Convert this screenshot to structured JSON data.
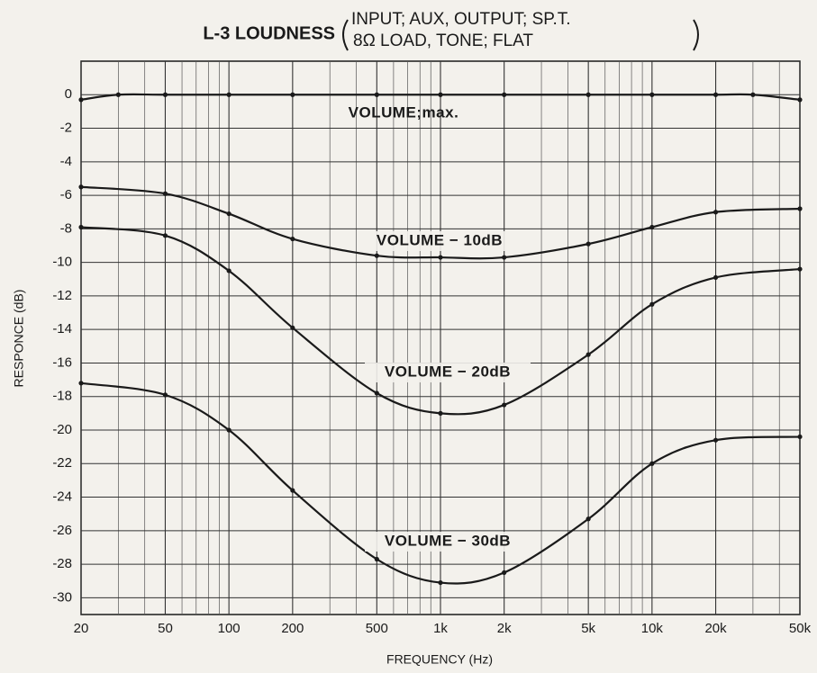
{
  "chart_data": {
    "type": "line",
    "title": "L-3 LOUDNESS",
    "title_conditions": [
      "INPUT; AUX, OUTPUT; SP.T.",
      "8Ω LOAD, TONE; FLAT"
    ],
    "x_label": "FREQUENCY (Hz)",
    "y_label": "RESPONCE (dB)",
    "log_x": true,
    "grid": true,
    "color": "#1a1a1a",
    "xlim": [
      20,
      50000
    ],
    "ylim": [
      -31,
      2
    ],
    "xticks": [
      20,
      50,
      100,
      200,
      500,
      {
        "value": 1000,
        "label": "1k"
      },
      {
        "value": 2000,
        "label": "2k"
      },
      {
        "value": 5000,
        "label": "5k"
      },
      {
        "value": 10000,
        "label": "10k"
      },
      {
        "value": 20000,
        "label": "20k"
      },
      {
        "value": 50000,
        "label": "50k"
      }
    ],
    "xminorticks": [
      30,
      40,
      60,
      70,
      80,
      90,
      300,
      400,
      600,
      700,
      800,
      900,
      3000,
      4000,
      6000,
      7000,
      8000,
      9000,
      30000,
      40000
    ],
    "yticks": [
      0,
      -2,
      -4,
      -6,
      -8,
      -10,
      -12,
      -14,
      -16,
      -18,
      -20,
      -22,
      -24,
      -26,
      -28,
      -30
    ],
    "series": [
      {
        "name": "VOLUME;max.",
        "x": [
          20,
          30,
          50,
          100,
          200,
          500,
          1000,
          2000,
          5000,
          10000,
          20000,
          30000,
          50000
        ],
        "values": [
          -0.3,
          0,
          0,
          0,
          0,
          0,
          0,
          0,
          0,
          0,
          0,
          0,
          -0.3
        ]
      },
      {
        "name": "VOLUME − 10dB",
        "x": [
          20,
          50,
          100,
          200,
          500,
          1000,
          2000,
          5000,
          10000,
          20000,
          50000
        ],
        "values": [
          -5.5,
          -5.9,
          -7.1,
          -8.6,
          -9.6,
          -9.7,
          -9.7,
          -8.9,
          -7.9,
          -7.0,
          -6.8
        ]
      },
      {
        "name": "VOLUME − 20dB",
        "x": [
          20,
          50,
          100,
          200,
          500,
          1000,
          2000,
          5000,
          10000,
          20000,
          50000
        ],
        "values": [
          -7.9,
          -8.4,
          -10.5,
          -13.9,
          -17.8,
          -19.0,
          -18.5,
          -15.5,
          -12.5,
          -10.9,
          -10.4
        ]
      },
      {
        "name": "VOLUME − 30dB",
        "x": [
          20,
          50,
          100,
          200,
          500,
          1000,
          2000,
          5000,
          10000,
          20000,
          50000
        ],
        "values": [
          -17.2,
          -17.9,
          -20.0,
          -23.6,
          -27.7,
          -29.1,
          -28.5,
          -25.3,
          -22.0,
          -20.6,
          -20.4
        ]
      }
    ]
  }
}
